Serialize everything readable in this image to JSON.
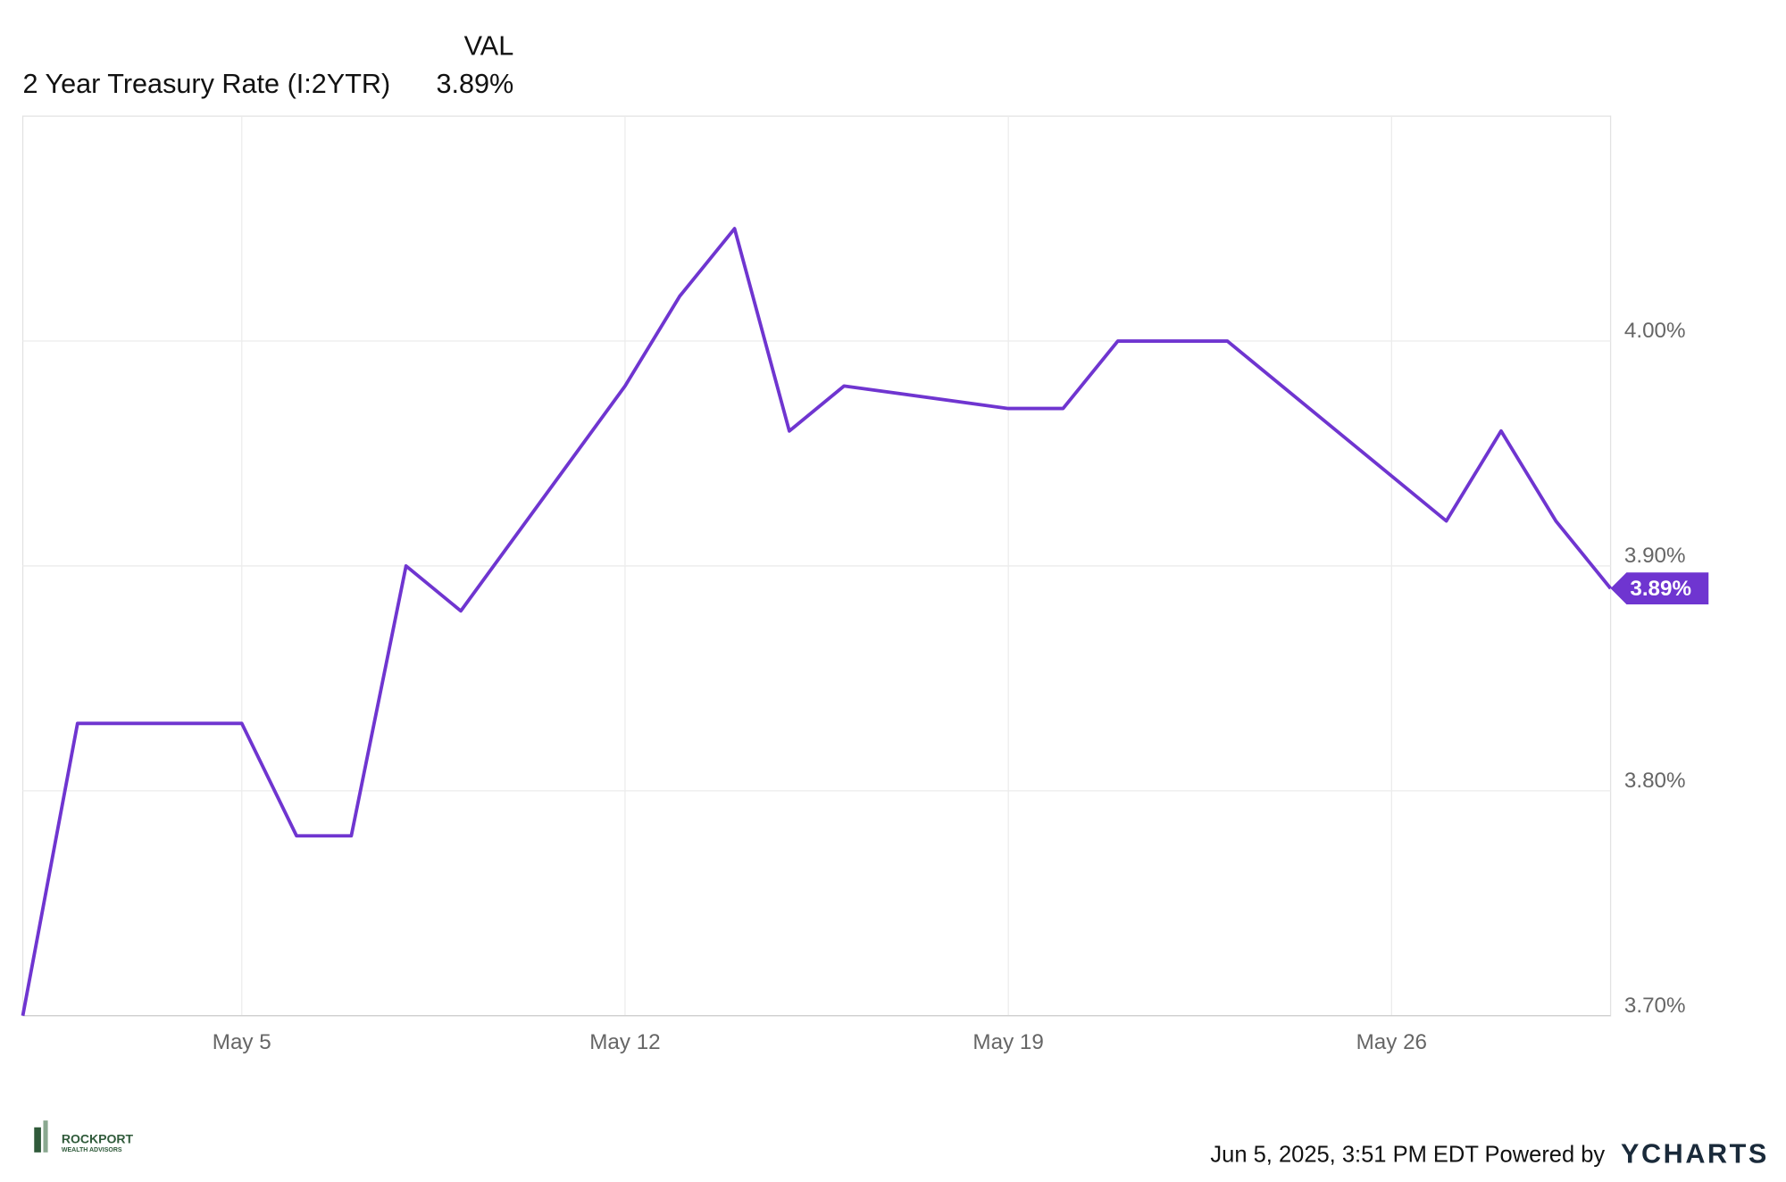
{
  "chart_data": {
    "type": "line",
    "legend_header": "VAL",
    "x": [
      "May 1",
      "May 2",
      "May 5",
      "May 6",
      "May 7",
      "May 8",
      "May 9",
      "May 12",
      "May 13",
      "May 14",
      "May 15",
      "May 16",
      "May 19",
      "May 20",
      "May 21",
      "May 22",
      "May 23",
      "May 27",
      "May 28",
      "May 29",
      "May 30"
    ],
    "xlim": [
      "May 1",
      "May 30"
    ],
    "xticks": [
      "May 5",
      "May 12",
      "May 19",
      "May 26"
    ],
    "ylim": [
      3.7,
      4.1
    ],
    "yticks": [
      {
        "value": 3.7,
        "label": "3.70%"
      },
      {
        "value": 3.8,
        "label": "3.80%"
      },
      {
        "value": 3.9,
        "label": "3.90%"
      },
      {
        "value": 4.0,
        "label": "4.00%"
      }
    ],
    "grid": true,
    "series": [
      {
        "name": "2 Year Treasury Rate (I:2YTR)",
        "color": "#6f35d0",
        "values": [
          3.7,
          3.83,
          3.83,
          3.78,
          3.78,
          3.9,
          3.88,
          3.98,
          4.02,
          4.05,
          3.96,
          3.98,
          3.97,
          3.97,
          4.0,
          4.0,
          4.0,
          3.92,
          3.96,
          3.92,
          3.89
        ],
        "last_value": 3.89,
        "last_value_label": "3.89%"
      }
    ],
    "timestamp": "Jun 5, 2025, 3:51 PM EDT Powered by",
    "brand": "YCHARTS",
    "logo_name": "ROCKPORT",
    "logo_sub": "WEALTH ADVISORS"
  }
}
